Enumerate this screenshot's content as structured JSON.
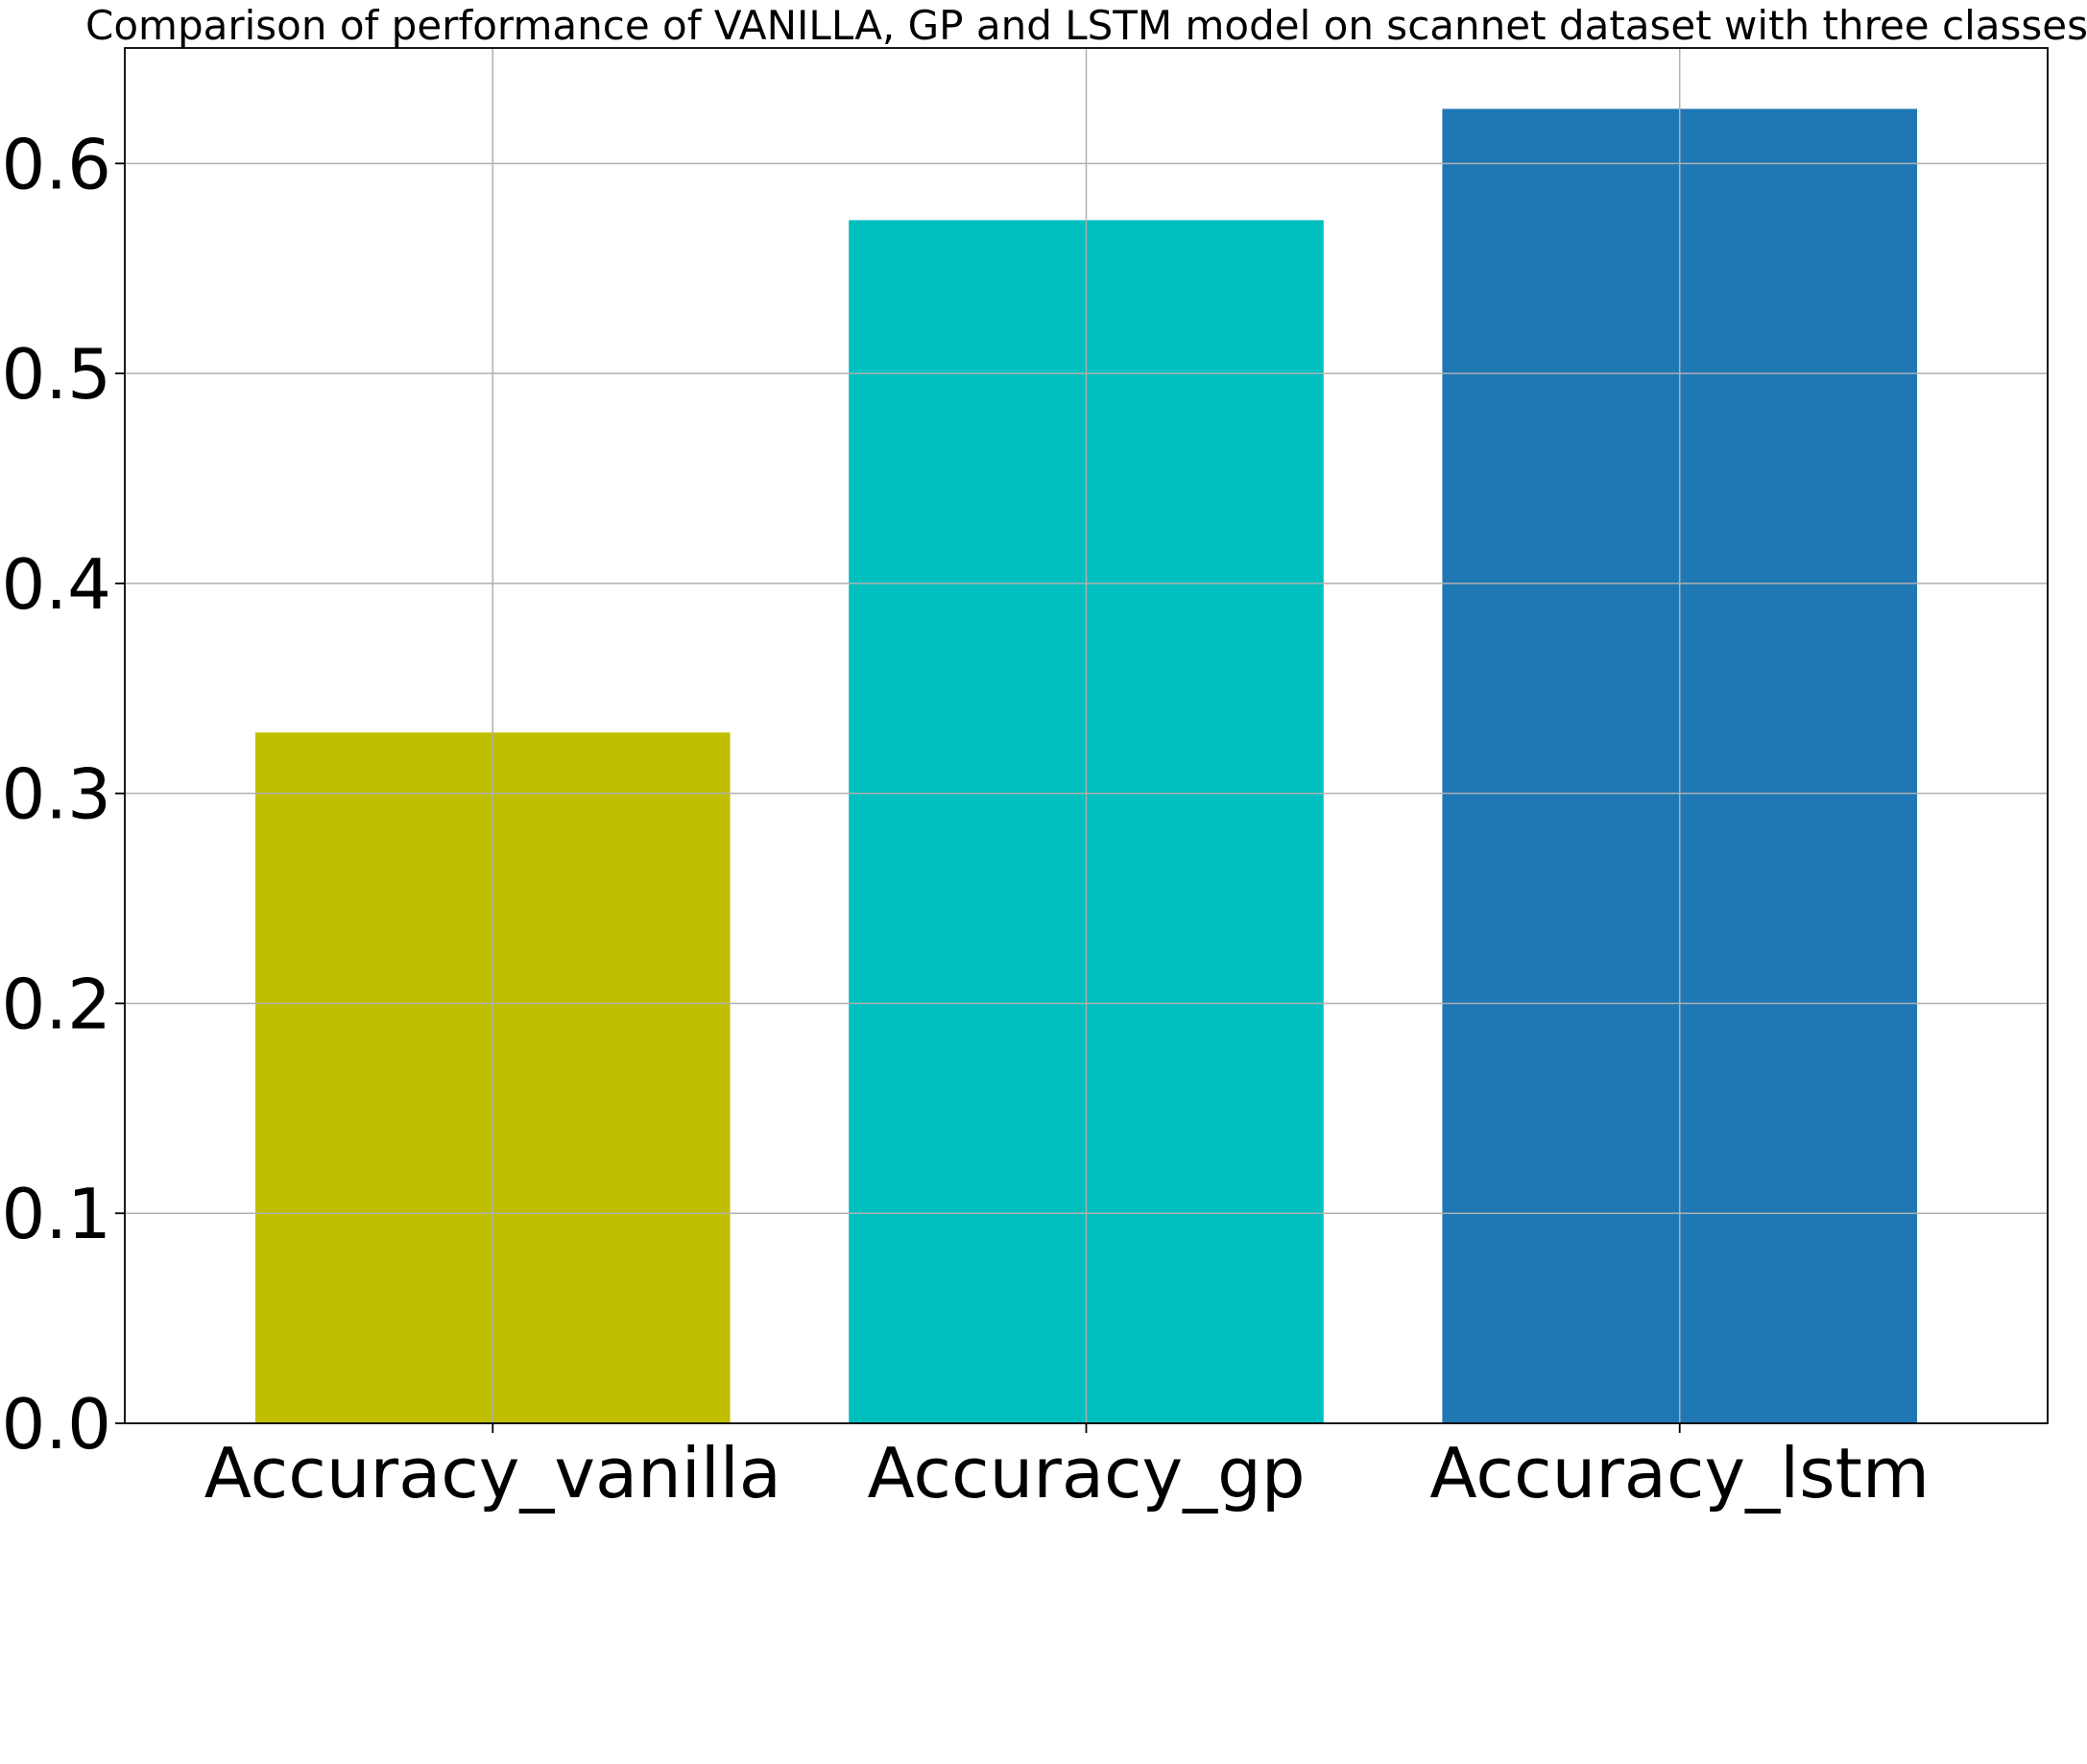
{
  "chart_data": {
    "type": "bar",
    "title": "Comparison of performance of VANILLA, GP and LSTM model on scannet dataset with three classes",
    "xlabel": "",
    "ylabel": "",
    "categories": [
      "Accuracy_vanilla",
      "Accuracy_gp",
      "Accuracy_lstm"
    ],
    "values": [
      0.329,
      0.573,
      0.626
    ],
    "colors": [
      "#bfbf00",
      "#00bfbf",
      "#1f77b4"
    ],
    "ylim": [
      0,
      0.655
    ],
    "yticks": [
      0.0,
      0.1,
      0.2,
      0.3,
      0.4,
      0.5,
      0.6
    ],
    "ytick_labels": [
      "0.0",
      "0.1",
      "0.2",
      "0.3",
      "0.4",
      "0.5",
      "0.6"
    ],
    "grid": true,
    "legend": "none"
  }
}
